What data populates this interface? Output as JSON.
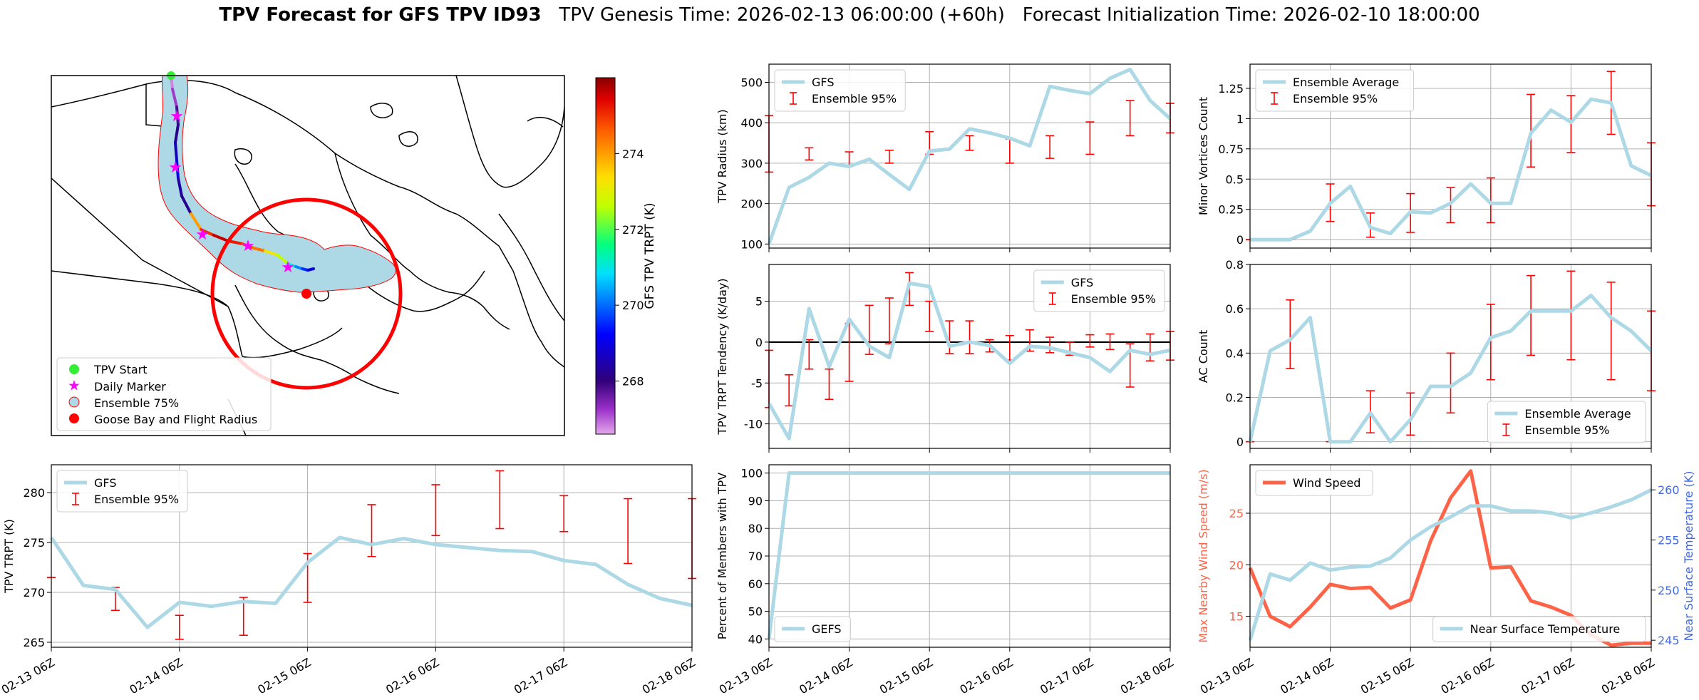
{
  "title": {
    "bold": "TPV Forecast for GFS TPV ID93",
    "genesis": "TPV Genesis Time: 2026-02-13 06:00:00 (+60h)",
    "init": "Forecast Initialization Time: 2026-02-10 18:00:00"
  },
  "colors": {
    "model": "#add8e6",
    "ensemble": "#ff0000",
    "wind": "#ff6347",
    "temp_axis": "#4169e1",
    "start_marker": "#33ee33",
    "daily_marker": "#ff00ff",
    "flight": "#ff0000"
  },
  "time_ticks": [
    "02-13 06Z",
    "02-14 06Z",
    "02-15 06Z",
    "02-16 06Z",
    "02-17 06Z",
    "02-18 06Z"
  ],
  "map": {
    "legend": [
      "TPV Start",
      "Daily Marker",
      "Ensemble 75%",
      "Goose Bay and Flight Radius"
    ],
    "colorbar_label": "GFS TPV TRPT (K)",
    "colorbar_ticks": [
      268,
      270,
      272,
      274
    ],
    "colorbar_range": [
      266.6,
      276.0
    ],
    "track_trpt": [
      266.8,
      267.2,
      267.8,
      268.2,
      268.6,
      269.0,
      268.4,
      268.2,
      274.0,
      275.0,
      275.6,
      275.2,
      274.8,
      274.4,
      273.2,
      272.6,
      271.0,
      270.2,
      269.6,
      268.9,
      268.6
    ]
  },
  "chart_data": [
    {
      "id": "radius",
      "type": "line",
      "title": "",
      "xlabel": "",
      "ylabel": "TPV Radius (km)",
      "ylim": [
        90,
        545
      ],
      "yticks": [
        100,
        200,
        300,
        400,
        500
      ],
      "legend_position": "upper-left",
      "legend_labels": [
        "GFS",
        "Ensemble 95%"
      ],
      "x_hours": [
        0,
        6,
        12,
        18,
        24,
        30,
        36,
        42,
        48,
        54,
        60,
        66,
        72,
        78,
        84,
        90,
        96,
        102,
        108,
        114,
        120
      ],
      "series": [
        {
          "name": "GFS",
          "values": [
            100,
            240,
            265,
            300,
            292,
            310,
            272,
            235,
            330,
            335,
            385,
            375,
            362,
            343,
            490,
            480,
            472,
            510,
            532,
            455,
            410
          ]
        }
      ],
      "errorbars": {
        "name": "Ensemble 95%",
        "x_hours": [
          0,
          12,
          24,
          36,
          48,
          60,
          72,
          84,
          96,
          108,
          120
        ],
        "low": [
          278,
          308,
          295,
          300,
          322,
          332,
          300,
          312,
          322,
          368,
          375
        ],
        "high": [
          418,
          338,
          328,
          332,
          378,
          368,
          360,
          368,
          402,
          455,
          448
        ]
      }
    },
    {
      "id": "minor_vortices",
      "type": "line",
      "title": "",
      "xlabel": "",
      "ylabel": "Minor Vortices Count",
      "ylim": [
        -0.07,
        1.45
      ],
      "yticks": [
        0.0,
        0.25,
        0.5,
        0.75,
        1.0,
        1.25
      ],
      "legend_position": "upper-left",
      "legend_labels": [
        "Ensemble Average",
        "Ensemble 95%"
      ],
      "x_hours": [
        0,
        6,
        12,
        18,
        24,
        30,
        36,
        42,
        48,
        54,
        60,
        66,
        72,
        78,
        84,
        90,
        96,
        102,
        108,
        114,
        120
      ],
      "series": [
        {
          "name": "Ensemble Average",
          "values": [
            0.0,
            0.0,
            0.0,
            0.07,
            0.3,
            0.44,
            0.1,
            0.05,
            0.23,
            0.22,
            0.3,
            0.46,
            0.3,
            0.3,
            0.88,
            1.07,
            0.97,
            1.16,
            1.13,
            0.61,
            0.53
          ]
        }
      ],
      "errorbars": {
        "name": "Ensemble 95%",
        "x_hours": [
          0,
          12,
          24,
          36,
          48,
          60,
          72,
          84,
          96,
          108,
          120
        ],
        "low": [
          0.0,
          0.0,
          0.15,
          0.02,
          0.06,
          0.14,
          0.14,
          0.6,
          0.72,
          0.87,
          0.28
        ],
        "high": [
          0.0,
          0.0,
          0.46,
          0.22,
          0.38,
          0.43,
          0.51,
          1.2,
          1.19,
          1.39,
          0.8
        ]
      }
    },
    {
      "id": "trpt_tendency",
      "type": "line",
      "title": "",
      "xlabel": "",
      "ylabel": "TPV TRPT Tendency (K/day)",
      "ylim": [
        -13,
        9.5
      ],
      "yticks": [
        -10,
        -5,
        0,
        5
      ],
      "legend_position": "upper-right",
      "legend_labels": [
        "GFS",
        "Ensemble 95%"
      ],
      "x_hours": [
        0,
        6,
        12,
        18,
        24,
        30,
        36,
        42,
        48,
        54,
        60,
        66,
        72,
        78,
        84,
        90,
        96,
        102,
        108,
        114,
        120
      ],
      "series": [
        {
          "name": "GFS",
          "values": [
            -7.5,
            -11.8,
            4.1,
            -3.0,
            2.8,
            -0.5,
            -1.9,
            7.2,
            6.8,
            -0.5,
            0.0,
            -0.4,
            -2.6,
            -0.5,
            -0.7,
            -1.3,
            -1.9,
            -3.6,
            -1.0,
            -1.5,
            -1.0
          ]
        }
      ],
      "errorbars": {
        "name": "Ensemble 95%",
        "x_hours": [
          0,
          6,
          12,
          18,
          24,
          30,
          36,
          42,
          48,
          54,
          60,
          66,
          72,
          78,
          84,
          90,
          96,
          102,
          108,
          114,
          120
        ],
        "low": [
          -8.0,
          -7.8,
          -3.3,
          -7.0,
          -4.8,
          -1.5,
          -0.2,
          4.5,
          1.3,
          -1.4,
          -1.4,
          -1.2,
          -2.2,
          -1.1,
          -1.3,
          -1.6,
          -0.6,
          -0.9,
          -5.5,
          -2.3,
          -2.2
        ],
        "high": [
          -1.0,
          -4.0,
          0.3,
          -3.3,
          2.3,
          4.5,
          5.4,
          8.5,
          5.0,
          2.6,
          2.6,
          0.3,
          0.8,
          1.5,
          0.6,
          0.0,
          0.9,
          1.0,
          -0.2,
          1.0,
          1.3
        ]
      },
      "hline": 0
    },
    {
      "id": "ac_count",
      "type": "line",
      "title": "",
      "xlabel": "",
      "ylabel": "AC Count",
      "ylim": [
        -0.03,
        0.8
      ],
      "yticks": [
        0.0,
        0.2,
        0.4,
        0.6,
        0.8
      ],
      "legend_position": "lower-right",
      "legend_labels": [
        "Ensemble Average",
        "Ensemble 95%"
      ],
      "x_hours": [
        0,
        6,
        12,
        18,
        24,
        30,
        36,
        42,
        48,
        54,
        60,
        66,
        72,
        78,
        84,
        90,
        96,
        102,
        108,
        114,
        120
      ],
      "series": [
        {
          "name": "Ensemble Average",
          "values": [
            0.0,
            0.41,
            0.46,
            0.56,
            0.0,
            0.0,
            0.13,
            0.0,
            0.1,
            0.25,
            0.25,
            0.31,
            0.47,
            0.5,
            0.59,
            0.59,
            0.59,
            0.66,
            0.56,
            0.5,
            0.41
          ]
        }
      ],
      "errorbars": {
        "name": "Ensemble 95%",
        "x_hours": [
          0,
          12,
          24,
          36,
          48,
          60,
          72,
          84,
          96,
          108,
          120
        ],
        "low": [
          0.0,
          0.33,
          0.0,
          0.04,
          0.03,
          0.13,
          0.28,
          0.39,
          0.37,
          0.28,
          0.23
        ],
        "high": [
          0.0,
          0.64,
          0.0,
          0.23,
          0.22,
          0.4,
          0.62,
          0.75,
          0.77,
          0.72,
          0.59
        ]
      }
    },
    {
      "id": "trpt",
      "type": "line",
      "title": "",
      "xlabel": "",
      "ylabel": "TPV TRPT (K)",
      "ylim": [
        264.5,
        282.8
      ],
      "yticks": [
        265,
        270,
        275,
        280
      ],
      "legend_position": "upper-left",
      "legend_labels": [
        "GFS",
        "Ensemble 95%"
      ],
      "x_hours": [
        0,
        6,
        12,
        18,
        24,
        30,
        36,
        42,
        48,
        54,
        60,
        66,
        72,
        78,
        84,
        90,
        96,
        102,
        108,
        114,
        120
      ],
      "series": [
        {
          "name": "GFS",
          "values": [
            275.5,
            270.7,
            270.3,
            266.5,
            269.0,
            268.6,
            269.1,
            268.9,
            273.0,
            275.5,
            274.8,
            275.4,
            274.8,
            274.5,
            274.2,
            274.1,
            273.2,
            272.8,
            270.8,
            269.4,
            268.7
          ]
        }
      ],
      "errorbars": {
        "name": "Ensemble 95%",
        "x_hours": [
          0,
          12,
          24,
          36,
          48,
          60,
          72,
          84,
          96,
          108,
          120
        ],
        "low": [
          271.5,
          268.2,
          265.3,
          265.7,
          269.0,
          273.6,
          275.7,
          276.4,
          276.1,
          272.9,
          271.4
        ],
        "high": [
          271.5,
          270.5,
          267.7,
          269.5,
          273.9,
          278.8,
          280.8,
          282.2,
          279.7,
          279.4,
          279.4
        ]
      }
    },
    {
      "id": "members",
      "type": "line",
      "title": "",
      "xlabel": "",
      "ylabel": "Percent of Members with TPV",
      "ylim": [
        37,
        103
      ],
      "yticks": [
        40,
        50,
        60,
        70,
        80,
        90,
        100
      ],
      "legend_position": "lower-left",
      "legend_labels": [
        "GEFS"
      ],
      "x_hours": [
        0,
        6,
        12,
        18,
        24,
        30,
        36,
        42,
        48,
        54,
        60,
        66,
        72,
        78,
        84,
        90,
        96,
        102,
        108,
        114,
        120
      ],
      "series": [
        {
          "name": "GEFS",
          "values": [
            40,
            100,
            100,
            100,
            100,
            100,
            100,
            100,
            100,
            100,
            100,
            100,
            100,
            100,
            100,
            100,
            100,
            100,
            100,
            100,
            100
          ]
        }
      ]
    },
    {
      "id": "wind_temp",
      "type": "line",
      "title": "",
      "xlabel": "",
      "ylabel": "Max Nearby Wind Speed (m/s)",
      "ylim": [
        12,
        29.7
      ],
      "yticks": [
        15,
        20,
        25
      ],
      "ylabel_right": "Near Surface Temperature (K)",
      "ylim_right": [
        244.3,
        262.5
      ],
      "yticks_right": [
        245,
        250,
        255,
        260
      ],
      "legend_labels": [
        "Wind Speed",
        "Near Surface Temperature"
      ],
      "x_hours": [
        0,
        6,
        12,
        18,
        24,
        30,
        36,
        42,
        48,
        54,
        60,
        66,
        72,
        78,
        84,
        90,
        96,
        102,
        108,
        114,
        120
      ],
      "series": [
        {
          "name": "Wind Speed",
          "axis": "left",
          "values": [
            19.7,
            15.0,
            14.0,
            15.9,
            18.1,
            17.7,
            17.8,
            15.8,
            16.6,
            22.3,
            26.5,
            29.1,
            19.7,
            19.8,
            16.5,
            15.9,
            15.1,
            13.2,
            12.2,
            12.4,
            12.4
          ]
        },
        {
          "name": "Near Surface Temperature",
          "axis": "right",
          "values": [
            245.0,
            251.6,
            251.0,
            252.7,
            252.0,
            252.3,
            252.4,
            253.2,
            255.0,
            256.3,
            257.3,
            258.4,
            258.4,
            257.9,
            257.9,
            257.7,
            257.2,
            257.7,
            258.3,
            259.0,
            260.0
          ]
        }
      ]
    }
  ]
}
